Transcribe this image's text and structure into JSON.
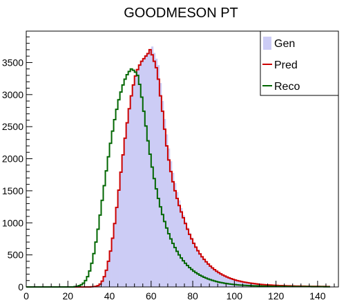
{
  "chart_data": {
    "type": "histogram",
    "title": "GOODMESON PT",
    "xlabel": "",
    "ylabel": "",
    "xlim": [
      0,
      150
    ],
    "ylim": [
      0,
      3990
    ],
    "x_ticks": [
      "0",
      "20",
      "40",
      "60",
      "80",
      "100",
      "120",
      "140"
    ],
    "y_ticks": [
      "0",
      "500",
      "1000",
      "1500",
      "2000",
      "2500",
      "3000",
      "3500"
    ],
    "legend_position": "top-right",
    "bin_width": 1.0,
    "x": [
      0.5,
      1.5,
      2.5,
      3.5,
      4.5,
      5.5,
      6.5,
      7.5,
      8.5,
      9.5,
      10.5,
      11.5,
      12.5,
      13.5,
      14.5,
      15.5,
      16.5,
      17.5,
      18.5,
      19.5,
      20.5,
      21.5,
      22.5,
      23.5,
      24.5,
      25.5,
      26.5,
      27.5,
      28.5,
      29.5,
      30.5,
      31.5,
      32.5,
      33.5,
      34.5,
      35.5,
      36.5,
      37.5,
      38.5,
      39.5,
      40.5,
      41.5,
      42.5,
      43.5,
      44.5,
      45.5,
      46.5,
      47.5,
      48.5,
      49.5,
      50.5,
      51.5,
      52.5,
      53.5,
      54.5,
      55.5,
      56.5,
      57.5,
      58.5,
      59.5,
      60.5,
      61.5,
      62.5,
      63.5,
      64.5,
      65.5,
      66.5,
      67.5,
      68.5,
      69.5,
      70.5,
      71.5,
      72.5,
      73.5,
      74.5,
      75.5,
      76.5,
      77.5,
      78.5,
      79.5,
      80.5,
      81.5,
      82.5,
      83.5,
      84.5,
      85.5,
      86.5,
      87.5,
      88.5,
      89.5,
      90.5,
      91.5,
      92.5,
      93.5,
      94.5,
      95.5,
      96.5,
      97.5,
      98.5,
      99.5,
      100.5,
      101.5,
      102.5,
      103.5,
      104.5,
      105.5,
      106.5,
      107.5,
      108.5,
      109.5,
      110.5,
      111.5,
      112.5,
      113.5,
      114.5,
      115.5,
      116.5,
      117.5,
      118.5,
      119.5,
      120.5,
      121.5,
      122.5,
      123.5,
      124.5,
      125.5,
      126.5,
      127.5,
      128.5,
      129.5,
      130.5,
      131.5,
      132.5,
      133.5,
      134.5,
      135.5,
      136.5,
      137.5,
      138.5,
      139.5,
      140.5,
      141.5,
      142.5,
      143.5,
      144.5,
      145.5,
      146.5,
      147.5,
      148.5,
      149.5
    ],
    "series": [
      {
        "name": "Gen",
        "style": "fill",
        "color": "#ccccf5",
        "values": [
          0,
          0,
          0,
          0,
          0,
          0,
          0,
          0,
          0,
          0,
          0,
          0,
          0,
          0,
          0,
          0,
          0,
          0,
          0,
          0,
          0,
          0,
          0,
          0,
          0,
          0,
          0,
          0,
          0,
          0,
          0,
          0,
          5,
          10,
          20,
          40,
          80,
          150,
          250,
          400,
          560,
          760,
          990,
          1240,
          1510,
          1790,
          2060,
          2320,
          2560,
          2780,
          2980,
          3150,
          3290,
          3390,
          3460,
          3530,
          3570,
          3620,
          3650,
          3700,
          3750,
          3650,
          3560,
          3460,
          3180,
          2900,
          2620,
          2380,
          2160,
          1960,
          1780,
          1620,
          1480,
          1350,
          1230,
          1120,
          1020,
          930,
          845,
          770,
          700,
          640,
          580,
          530,
          480,
          440,
          400,
          365,
          335,
          305,
          280,
          255,
          233,
          213,
          195,
          178,
          163,
          149,
          137,
          126,
          116,
          107,
          98,
          90,
          83,
          77,
          71,
          66,
          61,
          57,
          53,
          49,
          46,
          43,
          40,
          37,
          35,
          33,
          31,
          29,
          27,
          25,
          24,
          22,
          21,
          20,
          19,
          18,
          17,
          16,
          15,
          14,
          13,
          13,
          12,
          11,
          11,
          10,
          10,
          9,
          9,
          8,
          8,
          8,
          7,
          7,
          7,
          6,
          6,
          6
        ]
      },
      {
        "name": "Pred",
        "style": "step",
        "color": "#cc0000",
        "values": [
          0,
          0,
          0,
          0,
          0,
          0,
          0,
          0,
          0,
          0,
          0,
          0,
          0,
          0,
          0,
          0,
          0,
          0,
          0,
          0,
          0,
          0,
          0,
          0,
          0,
          0,
          0,
          0,
          0,
          0,
          0,
          2,
          5,
          10,
          20,
          45,
          90,
          160,
          260,
          400,
          560,
          760,
          990,
          1240,
          1510,
          1790,
          2060,
          2320,
          2560,
          2780,
          2980,
          3150,
          3290,
          3390,
          3460,
          3520,
          3560,
          3600,
          3640,
          3700,
          3620,
          3520,
          3420,
          3240,
          2980,
          2740,
          2460,
          2200,
          1980,
          1800,
          1640,
          1500,
          1380,
          1270,
          1170,
          1080,
          990,
          900,
          820,
          750,
          680,
          620,
          565,
          515,
          470,
          430,
          392,
          357,
          325,
          296,
          270,
          246,
          224,
          204,
          186,
          170,
          155,
          141,
          129,
          118,
          108,
          99,
          91,
          84,
          77,
          71,
          66,
          61,
          56,
          52,
          48,
          44,
          41,
          38,
          35,
          33,
          31,
          29,
          27,
          25,
          24,
          22,
          21,
          20,
          19,
          18,
          17,
          16,
          15,
          14,
          14,
          13,
          12,
          12,
          11,
          11,
          10,
          10,
          9,
          9,
          9,
          8,
          8,
          8,
          7,
          7
        ]
      },
      {
        "name": "Reco",
        "style": "step",
        "color": "#006600",
        "values": [
          0,
          0,
          0,
          0,
          0,
          0,
          0,
          0,
          0,
          0,
          0,
          0,
          0,
          0,
          0,
          0,
          0,
          0,
          0,
          0,
          0,
          0,
          0,
          5,
          10,
          20,
          35,
          60,
          100,
          160,
          250,
          370,
          520,
          700,
          900,
          1120,
          1350,
          1580,
          1810,
          2030,
          2240,
          2430,
          2610,
          2770,
          2920,
          3040,
          3150,
          3240,
          3310,
          3360,
          3400,
          3380,
          3350,
          3300,
          3160,
          2960,
          2740,
          2510,
          2280,
          2070,
          1870,
          1690,
          1530,
          1380,
          1250,
          1130,
          1020,
          920,
          830,
          750,
          680,
          615,
          555,
          500,
          452,
          408,
          369,
          334,
          302,
          273,
          247,
          224,
          203,
          184,
          167,
          151,
          137,
          124,
          113,
          102,
          93,
          84,
          76,
          69,
          63,
          57,
          52,
          47,
          43,
          39,
          36,
          33,
          30,
          28,
          26,
          24,
          22,
          20,
          19,
          18,
          17,
          16,
          15,
          14,
          13,
          12,
          12,
          11,
          10,
          10,
          9,
          9,
          8,
          8,
          8,
          7,
          7,
          7,
          6,
          6,
          6,
          6,
          5,
          5,
          5,
          5,
          5,
          4,
          4,
          4,
          4,
          4,
          4,
          3,
          3,
          3
        ]
      }
    ]
  }
}
